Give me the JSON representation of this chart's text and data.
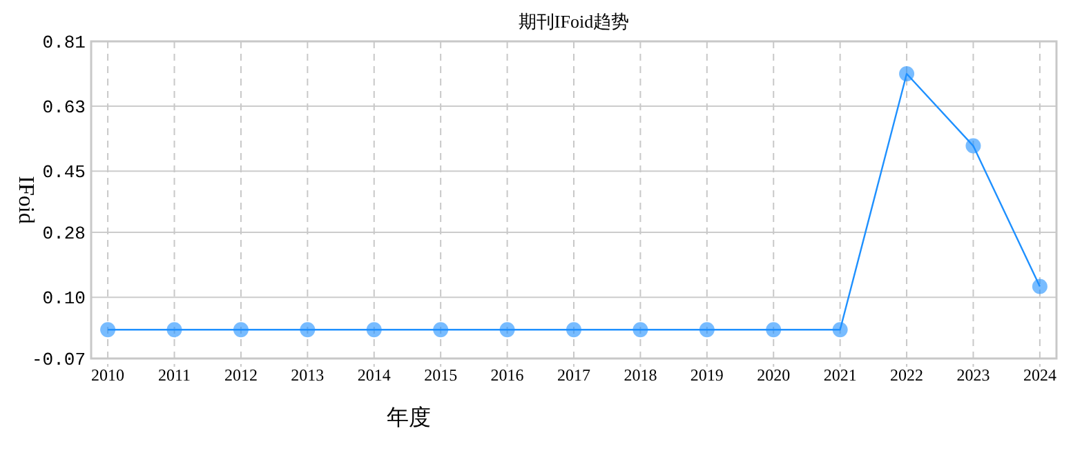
{
  "chart_data": {
    "type": "line",
    "title": "期刊IFoid趋势",
    "xlabel": "年度",
    "ylabel": "IFoid",
    "categories": [
      "2010",
      "2011",
      "2012",
      "2013",
      "2014",
      "2015",
      "2016",
      "2017",
      "2018",
      "2019",
      "2020",
      "2021",
      "2022",
      "2023",
      "2024"
    ],
    "series": [
      {
        "color": "#1e90ff",
        "values": [
          0.01,
          0.01,
          0.01,
          0.01,
          0.01,
          0.01,
          0.01,
          0.01,
          0.01,
          0.01,
          0.01,
          0.01,
          0.72,
          0.52,
          0.13
        ]
      }
    ],
    "ylim": [
      -0.07,
      0.81
    ],
    "yticks": [
      -0.07,
      {
        "value": 0.1,
        "label": "0.10"
      },
      {
        "value": 0.28,
        "label": "0.28"
      },
      0.45,
      0.63,
      0.81
    ],
    "grid": true,
    "marker": "circle",
    "line_style": "solid"
  }
}
